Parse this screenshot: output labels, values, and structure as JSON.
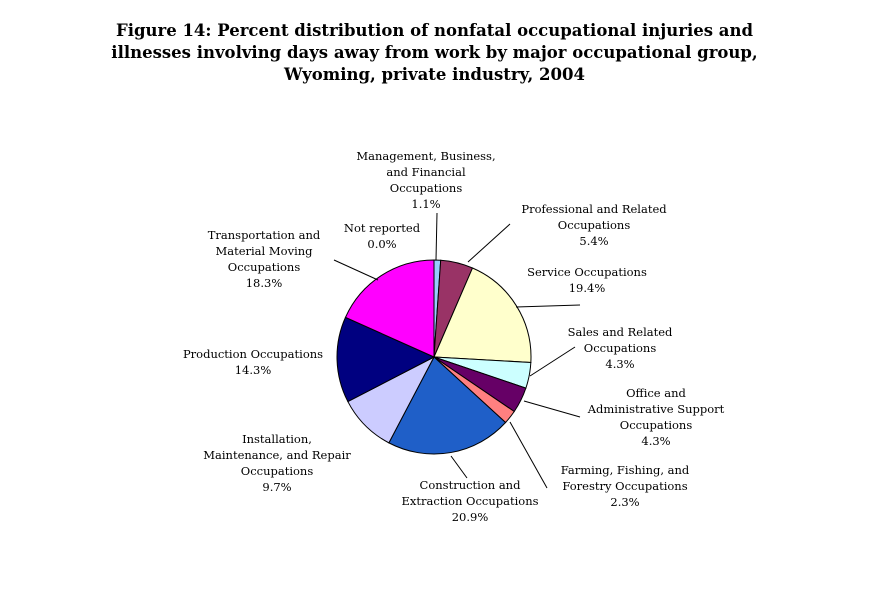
{
  "chart_data": {
    "type": "pie",
    "title_lines": [
      "Figure 14:  Percent distribution of nonfatal occupational injuries and",
      "illnesses involving days away from work by major occupational group,",
      "Wyoming, private industry, 2004"
    ],
    "slices": [
      {
        "label_lines": [
          "Management, Business,",
          "and Financial",
          "Occupations"
        ],
        "value_text": "1.1%",
        "value": 1.1,
        "color": "#99ccff"
      },
      {
        "label_lines": [
          "Professional and Related",
          "Occupations"
        ],
        "value_text": "5.4%",
        "value": 5.4,
        "color": "#993366"
      },
      {
        "label_lines": [
          "Service Occupations"
        ],
        "value_text": "19.4%",
        "value": 19.4,
        "color": "#ffffcc"
      },
      {
        "label_lines": [
          "Sales and Related",
          "Occupations"
        ],
        "value_text": "4.3%",
        "value": 4.3,
        "color": "#ccffff"
      },
      {
        "label_lines": [
          "Office and",
          "Administrative Support",
          "Occupations"
        ],
        "value_text": "4.3%",
        "value": 4.3,
        "color": "#660066"
      },
      {
        "label_lines": [
          "Farming, Fishing, and",
          "Forestry Occupations"
        ],
        "value_text": "2.3%",
        "value": 2.3,
        "color": "#ff8080"
      },
      {
        "label_lines": [
          "Construction and",
          "Extraction Occupations"
        ],
        "value_text": "20.9%",
        "value": 20.9,
        "color": "#1f5fc8"
      },
      {
        "label_lines": [
          "Installation,",
          "Maintenance, and Repair",
          "Occupations"
        ],
        "value_text": "9.7%",
        "value": 9.7,
        "color": "#ccccff"
      },
      {
        "label_lines": [
          "Production Occupations"
        ],
        "value_text": "14.3%",
        "value": 14.3,
        "color": "#000080"
      },
      {
        "label_lines": [
          "Transportation and",
          "Material Moving",
          "Occupations"
        ],
        "value_text": "18.3%",
        "value": 18.3,
        "color": "#ff00ff"
      },
      {
        "label_lines": [
          "Not reported"
        ],
        "value_text": "0.0%",
        "value": 0.0,
        "color": "#ffffff"
      }
    ]
  }
}
